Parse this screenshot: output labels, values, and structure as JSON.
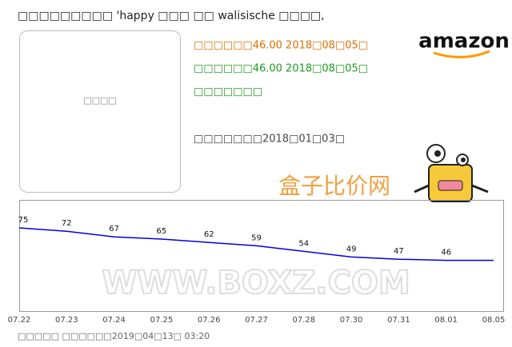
{
  "header": {
    "title": "□□□□□□□□□ 'happy □□□ □□ walisische □□□□,"
  },
  "image_placeholder": "□□□□",
  "info": {
    "current_price": "□□□□□□46.00   2018□08□05□",
    "lowest_price": "□□□□□□46.00   2018□08□05□",
    "status": "□□□□□□□",
    "listed": "□□□□□□□2018□01□03□"
  },
  "brand": "amazon",
  "watermark": {
    "site": "盒子比价网",
    "url": "WWW.BOXZ.COM"
  },
  "chart_data": {
    "type": "line",
    "categories": [
      "07.22",
      "07.23",
      "07.24",
      "07.25",
      "07.26",
      "07.27",
      "07.28",
      "07.30",
      "07.31",
      "08.01",
      "08.05"
    ],
    "series": [
      {
        "name": "price",
        "color": "#0000dd",
        "values": [
          75,
          72,
          67,
          65,
          62,
          59,
          54,
          49,
          47,
          46,
          46
        ],
        "value_labels": [
          "75",
          "72",
          "67",
          "65",
          "62",
          "59",
          "54",
          "49",
          "47",
          "46",
          null
        ]
      }
    ],
    "ylim": [
      0,
      100
    ]
  },
  "footer": "□□□□□ □□□□□□2019□04□13□ 03:20"
}
